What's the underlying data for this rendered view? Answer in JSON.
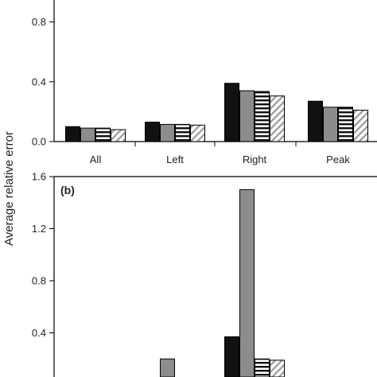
{
  "ylabel": "Average relative error",
  "patterns": {
    "colors": [
      "#111111",
      "#8c8c8c",
      "#ffffff",
      "#ffffff"
    ],
    "styles": [
      "solid",
      "solid",
      "horizontal-stripes",
      "diagonal-hatch"
    ]
  },
  "chart_data": [
    {
      "type": "bar",
      "panel_label": "",
      "categories": [
        "All",
        "Left",
        "Right",
        "Peak"
      ],
      "series": [
        {
          "values": [
            0.1,
            0.13,
            0.39,
            0.27
          ]
        },
        {
          "values": [
            0.09,
            0.115,
            0.34,
            0.23
          ]
        },
        {
          "values": [
            0.09,
            0.115,
            0.335,
            0.23
          ]
        },
        {
          "values": [
            0.08,
            0.11,
            0.305,
            0.21
          ]
        }
      ],
      "yticks": [
        "0.0",
        "0.4",
        "0.8"
      ],
      "ylim": [
        0,
        1.0
      ]
    },
    {
      "type": "bar",
      "panel_label": "(b)",
      "categories": [
        "",
        "",
        "",
        ""
      ],
      "series": [
        {
          "values": [
            0.0,
            0.0,
            0.37,
            0.0
          ]
        },
        {
          "values": [
            0.0,
            0.2,
            1.5,
            0.0
          ]
        },
        {
          "values": [
            0.0,
            0.0,
            0.2,
            0.0
          ]
        },
        {
          "values": [
            0.0,
            0.0,
            0.19,
            0.0
          ]
        }
      ],
      "yticks": [
        "0.4",
        "0.8",
        "1.2",
        "1.6"
      ],
      "ylim": [
        0,
        1.6
      ]
    }
  ]
}
